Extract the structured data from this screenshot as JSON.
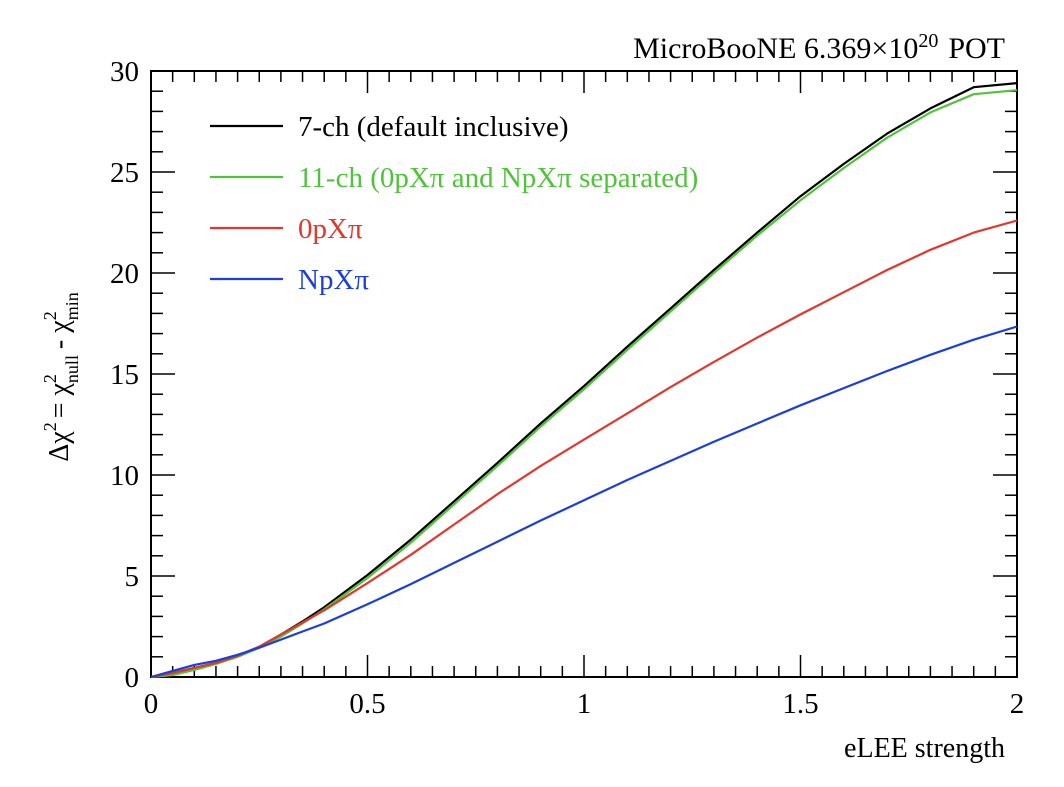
{
  "chart_data": {
    "type": "line",
    "title": "MicroBooNE 6.369×10^20 POT",
    "title_parts": {
      "prefix": "MicroBooNE 6.369×10",
      "exponent": "20",
      "suffix": "POT"
    },
    "xlabel": "eLEE strength",
    "ylabel": "Δχ² = χ²_null - χ²_min",
    "ylabel_parts": {
      "delta": "Δχ",
      "sup": "2",
      "eq": "= χ",
      "null_sub": "null",
      "minus": "- χ",
      "min_sub": "min"
    },
    "xlim": [
      0,
      2
    ],
    "ylim": [
      0,
      30
    ],
    "x_ticks": [
      0,
      0.5,
      1,
      1.5,
      2
    ],
    "x_tick_labels": [
      "0",
      "0.5",
      "1",
      "1.5",
      "2"
    ],
    "y_ticks": [
      0,
      5,
      10,
      15,
      20,
      25,
      30
    ],
    "y_tick_labels": [
      "0",
      "5",
      "10",
      "15",
      "20",
      "25",
      "30"
    ],
    "grid": false,
    "legend_position": "top-left",
    "x": [
      0,
      0.05,
      0.1,
      0.15,
      0.2,
      0.25,
      0.3,
      0.35,
      0.4,
      0.5,
      0.6,
      0.7,
      0.8,
      0.9,
      1.0,
      1.1,
      1.2,
      1.3,
      1.4,
      1.5,
      1.6,
      1.7,
      1.8,
      1.9,
      2.0
    ],
    "series": [
      {
        "name": "7-ch (default inclusive)",
        "color": "#000000",
        "values": [
          0,
          0.2,
          0.45,
          0.7,
          1.05,
          1.5,
          2.1,
          2.75,
          3.45,
          5.05,
          6.8,
          8.7,
          10.6,
          12.55,
          14.4,
          16.35,
          18.25,
          20.15,
          22.0,
          23.8,
          25.4,
          26.9,
          28.15,
          29.2,
          29.4
        ]
      },
      {
        "name": "11-ch (0pXπ and NpXπ separated)",
        "color": "#4fc43a",
        "values": [
          0,
          0.1,
          0.35,
          0.65,
          1.0,
          1.45,
          2.0,
          2.65,
          3.35,
          4.9,
          6.65,
          8.55,
          10.45,
          12.4,
          14.25,
          16.2,
          18.1,
          20.0,
          21.85,
          23.6,
          25.2,
          26.7,
          27.95,
          28.85,
          29.05
        ]
      },
      {
        "name": "0pXπ",
        "color": "#e3372c",
        "values": [
          0,
          0.2,
          0.45,
          0.7,
          1.05,
          1.5,
          2.1,
          2.7,
          3.3,
          4.65,
          6.05,
          7.55,
          9.05,
          10.45,
          11.75,
          13.05,
          14.35,
          15.6,
          16.8,
          17.95,
          19.05,
          20.15,
          21.15,
          22.0,
          22.6
        ]
      },
      {
        "name": "NpXπ",
        "color": "#1a3ee0",
        "values": [
          0,
          0.3,
          0.6,
          0.8,
          1.1,
          1.45,
          1.85,
          2.25,
          2.65,
          3.6,
          4.6,
          5.65,
          6.7,
          7.75,
          8.75,
          9.75,
          10.7,
          11.65,
          12.55,
          13.45,
          14.3,
          15.15,
          15.95,
          16.7,
          17.35
        ]
      }
    ]
  }
}
